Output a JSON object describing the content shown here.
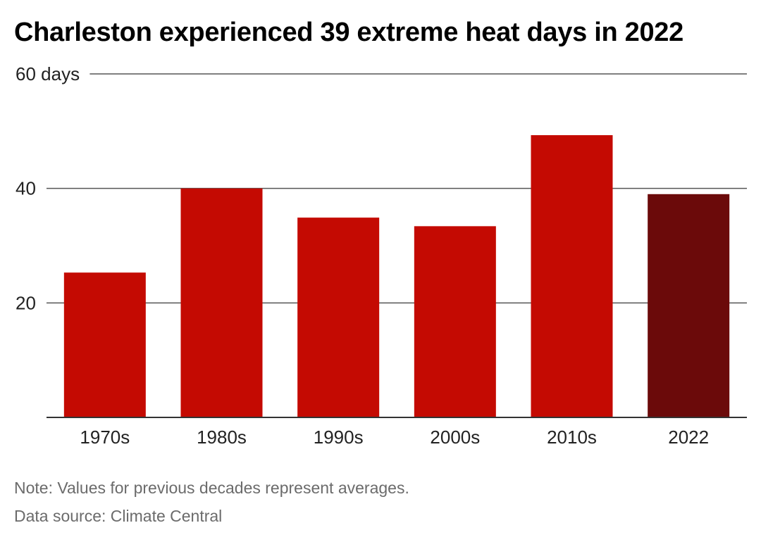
{
  "chart_data": {
    "type": "bar",
    "title": "Charleston experienced 39 extreme heat days in 2022",
    "categories": [
      "1970s",
      "1980s",
      "1990s",
      "2000s",
      "2010s",
      "2022"
    ],
    "values": [
      25.3,
      40.0,
      34.9,
      33.4,
      49.3,
      39.0
    ],
    "ylim": [
      0,
      60
    ],
    "yticks": [
      20,
      40,
      60
    ],
    "ytick_labels": [
      "20",
      "40",
      "60 days"
    ],
    "ylabel": "",
    "xlabel": "",
    "grid": true,
    "colors": {
      "default_bar": "#c40a02",
      "highlight_bar": "#6b0a0a",
      "gridline": "#555555",
      "axis": "#333333"
    },
    "highlight_category": "2022"
  },
  "footer": {
    "note": "Note: Values for previous decades represent averages.",
    "source": "Data source: Climate Central"
  }
}
